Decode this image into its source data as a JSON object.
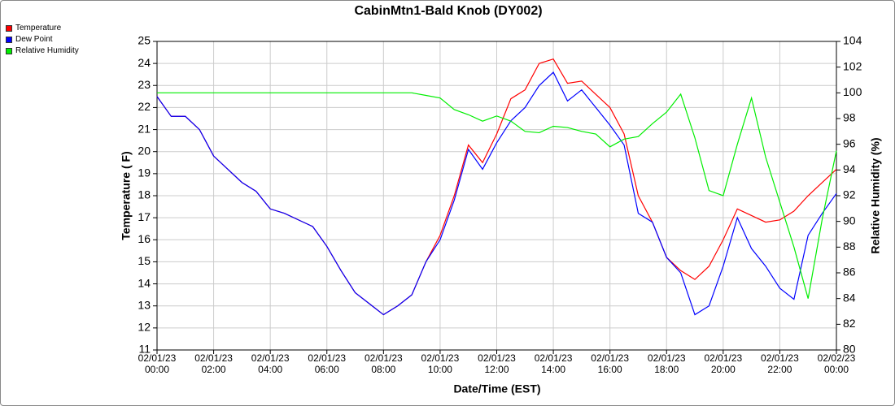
{
  "chart_data": {
    "type": "line",
    "title": "CabinMtn1-Bald Knob (DY002)",
    "x_label": "Date/Time (EST)",
    "y_label": "Temperature ( F)",
    "y2_label": "Relative Humidity (%)",
    "x": [
      "02/01/23 00:00",
      "02/01/23 00:30",
      "02/01/23 01:00",
      "02/01/23 01:30",
      "02/01/23 02:00",
      "02/01/23 02:30",
      "02/01/23 03:00",
      "02/01/23 03:30",
      "02/01/23 04:00",
      "02/01/23 04:30",
      "02/01/23 05:00",
      "02/01/23 05:30",
      "02/01/23 06:00",
      "02/01/23 06:30",
      "02/01/23 07:00",
      "02/01/23 07:30",
      "02/01/23 08:00",
      "02/01/23 08:30",
      "02/01/23 09:00",
      "02/01/23 09:30",
      "02/01/23 10:00",
      "02/01/23 10:30",
      "02/01/23 11:00",
      "02/01/23 11:30",
      "02/01/23 12:00",
      "02/01/23 12:30",
      "02/01/23 13:00",
      "02/01/23 13:30",
      "02/01/23 14:00",
      "02/01/23 14:30",
      "02/01/23 15:00",
      "02/01/23 15:30",
      "02/01/23 16:00",
      "02/01/23 16:30",
      "02/01/23 17:00",
      "02/01/23 17:30",
      "02/01/23 18:00",
      "02/01/23 18:30",
      "02/01/23 19:00",
      "02/01/23 19:30",
      "02/01/23 20:00",
      "02/01/23 20:30",
      "02/01/23 21:00",
      "02/01/23 21:30",
      "02/01/23 22:00",
      "02/01/23 22:30",
      "02/01/23 23:00",
      "02/01/23 23:30",
      "02/02/23 00:00"
    ],
    "xticks": [
      "02/01/23 00:00",
      "02/01/23 02:00",
      "02/01/23 04:00",
      "02/01/23 06:00",
      "02/01/23 08:00",
      "02/01/23 10:00",
      "02/01/23 12:00",
      "02/01/23 14:00",
      "02/01/23 16:00",
      "02/01/23 18:00",
      "02/01/23 20:00",
      "02/01/23 22:00",
      "02/02/23 00:00"
    ],
    "ylim": [
      11,
      25
    ],
    "yticks": [
      11,
      12,
      13,
      14,
      15,
      16,
      17,
      18,
      19,
      20,
      21,
      22,
      23,
      24,
      25
    ],
    "y2lim": [
      80,
      104
    ],
    "y2ticks": [
      80,
      82,
      84,
      86,
      88,
      90,
      92,
      94,
      96,
      98,
      100,
      102,
      104
    ],
    "grid": true,
    "legend": "top-left",
    "series": [
      {
        "name": "Temperature",
        "color": "#ff0000",
        "values": [
          22.5,
          21.6,
          21.6,
          21.0,
          19.8,
          19.2,
          18.6,
          18.2,
          17.4,
          17.2,
          16.9,
          16.6,
          15.7,
          14.6,
          13.6,
          13.1,
          12.6,
          13.0,
          13.5,
          15.0,
          16.2,
          18.0,
          20.3,
          19.5,
          20.8,
          22.4,
          22.8,
          24.0,
          24.2,
          23.1,
          23.2,
          22.6,
          22.0,
          20.8,
          18.0,
          16.8,
          15.2,
          14.6,
          14.2,
          14.8,
          16.0,
          17.4,
          17.1,
          16.8,
          16.9,
          17.3,
          18.0,
          18.6,
          19.2
        ]
      },
      {
        "name": "Dew Point",
        "color": "#0000ff",
        "values": [
          22.5,
          21.6,
          21.6,
          21.0,
          19.8,
          19.2,
          18.6,
          18.2,
          17.4,
          17.2,
          16.9,
          16.6,
          15.7,
          14.6,
          13.6,
          13.1,
          12.6,
          13.0,
          13.5,
          15.0,
          16.0,
          17.8,
          20.1,
          19.2,
          20.4,
          21.4,
          22.0,
          23.0,
          23.6,
          22.3,
          22.8,
          22.0,
          21.2,
          20.3,
          17.2,
          16.8,
          15.2,
          14.5,
          12.6,
          13.0,
          14.8,
          17.0,
          15.6,
          14.8,
          13.8,
          13.3,
          16.2,
          17.2,
          18.1
        ]
      },
      {
        "name": "Relative Humidity",
        "color": "#00ee00",
        "axis": "y2",
        "values": [
          100,
          100,
          100,
          100,
          100,
          100,
          100,
          100,
          100,
          100,
          100,
          100,
          100,
          100,
          100,
          100,
          100,
          100,
          100,
          99.8,
          99.6,
          98.7,
          98.3,
          97.8,
          98.2,
          97.8,
          97.0,
          96.9,
          97.4,
          97.3,
          97.0,
          96.8,
          95.8,
          96.4,
          96.6,
          97.6,
          98.5,
          99.9,
          96.5,
          92.4,
          92.0,
          96.0,
          99.6,
          95.0,
          91.5,
          88.0,
          84.0,
          90.2,
          95.5
        ]
      }
    ]
  }
}
